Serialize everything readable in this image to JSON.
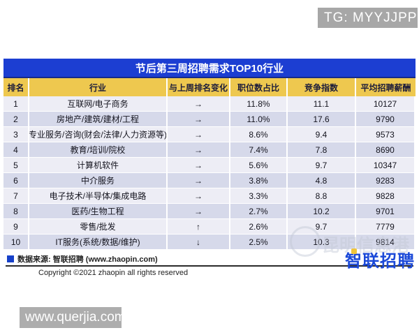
{
  "header": {
    "tg_badge": "TG: MYYJJPP"
  },
  "chart_data": {
    "type": "table",
    "title": "节后第三周招聘需求TOP10行业",
    "columns": [
      "排名",
      "行业",
      "与上周排名变化",
      "职位数占比",
      "竞争指数",
      "平均招聘薪酬"
    ],
    "rows": [
      {
        "rank": "1",
        "industry": "互联网/电子商务",
        "change": "→",
        "job_share": "11.8%",
        "competition": "11.1",
        "salary": "10127"
      },
      {
        "rank": "2",
        "industry": "房地产/建筑/建材/工程",
        "change": "→",
        "job_share": "11.0%",
        "competition": "17.6",
        "salary": "9790"
      },
      {
        "rank": "3",
        "industry": "专业服务/咨询(财会/法律/人力资源等)",
        "change": "→",
        "job_share": "8.6%",
        "competition": "9.4",
        "salary": "9573"
      },
      {
        "rank": "4",
        "industry": "教育/培训/院校",
        "change": "→",
        "job_share": "7.4%",
        "competition": "7.8",
        "salary": "8690"
      },
      {
        "rank": "5",
        "industry": "计算机软件",
        "change": "→",
        "job_share": "5.6%",
        "competition": "9.7",
        "salary": "10347"
      },
      {
        "rank": "6",
        "industry": "中介服务",
        "change": "→",
        "job_share": "3.8%",
        "competition": "4.8",
        "salary": "9283"
      },
      {
        "rank": "7",
        "industry": "电子技术/半导体/集成电路",
        "change": "→",
        "job_share": "3.3%",
        "competition": "8.8",
        "salary": "9828"
      },
      {
        "rank": "8",
        "industry": "医药/生物工程",
        "change": "→",
        "job_share": "2.7%",
        "competition": "10.2",
        "salary": "9701"
      },
      {
        "rank": "9",
        "industry": "零售/批发",
        "change": "↑",
        "job_share": "2.6%",
        "competition": "9.7",
        "salary": "7779"
      },
      {
        "rank": "10",
        "industry": "IT服务(系统/数据/维护)",
        "change": "↓",
        "job_share": "2.5%",
        "competition": "10.3",
        "salary": "9814"
      }
    ]
  },
  "footer": {
    "source": "数据来源: 智联招聘 (www.zhaopin.com)",
    "copyright": "Copyright ©2021 zhaopin all rights reserved",
    "logo": "智联招聘"
  },
  "watermark": {
    "text": "昆明信息港"
  },
  "site_badge": "www.querjia.com",
  "colors": {
    "titleBlue": "#1c3ed2",
    "headerYellow": "#eec84f",
    "rowLight": "#ededf5",
    "rowDark": "#d6d9ea",
    "logoBlue": "#1b49d8",
    "badgeGray": "#a7a7a7"
  }
}
